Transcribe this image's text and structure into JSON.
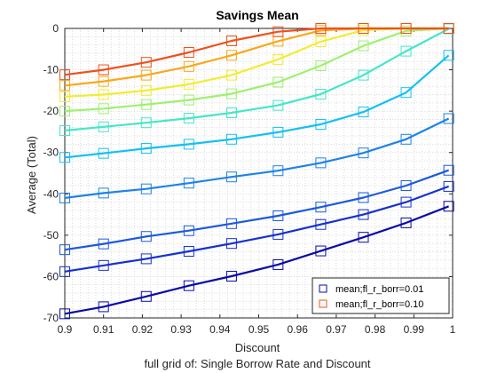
{
  "chart_data": {
    "type": "line",
    "title": "Savings Mean",
    "xlabel": "Discount",
    "ylabel": "Average  (Total)",
    "subtitle": "full grid of: Single Borrow Rate and Discount",
    "xlim": [
      0.9,
      1.0
    ],
    "ylim": [
      -70,
      0
    ],
    "xticks": [
      "0.9",
      "0.91",
      "0.92",
      "0.93",
      "0.94",
      "0.95",
      "0.96",
      "0.97",
      "0.98",
      "0.99",
      "1"
    ],
    "yticks": [
      "0",
      "-10",
      "-20",
      "-30",
      "-40",
      "-50",
      "-60",
      "-70"
    ],
    "grid": "minor-dotted",
    "legend_position": "bottom-right",
    "x": [
      0.9,
      0.91,
      0.921,
      0.932,
      0.943,
      0.955,
      0.966,
      0.977,
      0.988,
      0.999
    ],
    "series": [
      {
        "name": "mean;fl_r_borr=0.01",
        "color": "#0a0aa8",
        "legend": true,
        "values": [
          -69,
          -67.3,
          -64.8,
          -62.2,
          -59.9,
          -57.1,
          -53.8,
          -50.5,
          -47,
          -43
        ]
      },
      {
        "name": "",
        "color": "#1630d0",
        "legend": false,
        "values": [
          -58.8,
          -57.3,
          -55.7,
          -53.9,
          -52,
          -49.8,
          -47.4,
          -45,
          -42,
          -38.2
        ]
      },
      {
        "name": "",
        "color": "#1c58e0",
        "legend": false,
        "values": [
          -53.5,
          -52.1,
          -50.3,
          -48.9,
          -47.2,
          -45.3,
          -43.2,
          -40.9,
          -38,
          -34.3
        ]
      },
      {
        "name": "",
        "color": "#1e82e8",
        "legend": false,
        "values": [
          -41,
          -39.8,
          -38.8,
          -37.4,
          -35.9,
          -34.4,
          -32.5,
          -30.1,
          -26.8,
          -21.8
        ]
      },
      {
        "name": "",
        "color": "#14c0f2",
        "legend": false,
        "values": [
          -31.2,
          -30.2,
          -29,
          -28,
          -26.8,
          -25.1,
          -23.2,
          -20.2,
          -15.5,
          -6.5
        ]
      },
      {
        "name": "",
        "color": "#44e6c8",
        "legend": false,
        "values": [
          -24.7,
          -23.8,
          -22.8,
          -21.7,
          -20.4,
          -18.6,
          -15.9,
          -11.3,
          -5.5,
          -0.1
        ]
      },
      {
        "name": "",
        "color": "#9ef070",
        "legend": false,
        "values": [
          -20,
          -19.4,
          -18.4,
          -17.3,
          -15.8,
          -13,
          -9,
          -4.2,
          -0.6,
          0
        ]
      },
      {
        "name": "",
        "color": "#f2ec30",
        "legend": false,
        "values": [
          -16.5,
          -16,
          -15,
          -13.5,
          -11.3,
          -7.5,
          -3.2,
          -0.4,
          0,
          0
        ]
      },
      {
        "name": "",
        "color": "#f8a818",
        "legend": false,
        "values": [
          -13.8,
          -12.8,
          -11.3,
          -9.2,
          -6.5,
          -3.1,
          -0.5,
          0,
          0,
          0
        ]
      },
      {
        "name": "mean;fl_r_borr=0.10",
        "color": "#f0501a",
        "legend": true,
        "values": [
          -11.2,
          -10,
          -8.2,
          -5.8,
          -3,
          -0.8,
          0,
          0,
          0,
          0
        ]
      }
    ]
  }
}
